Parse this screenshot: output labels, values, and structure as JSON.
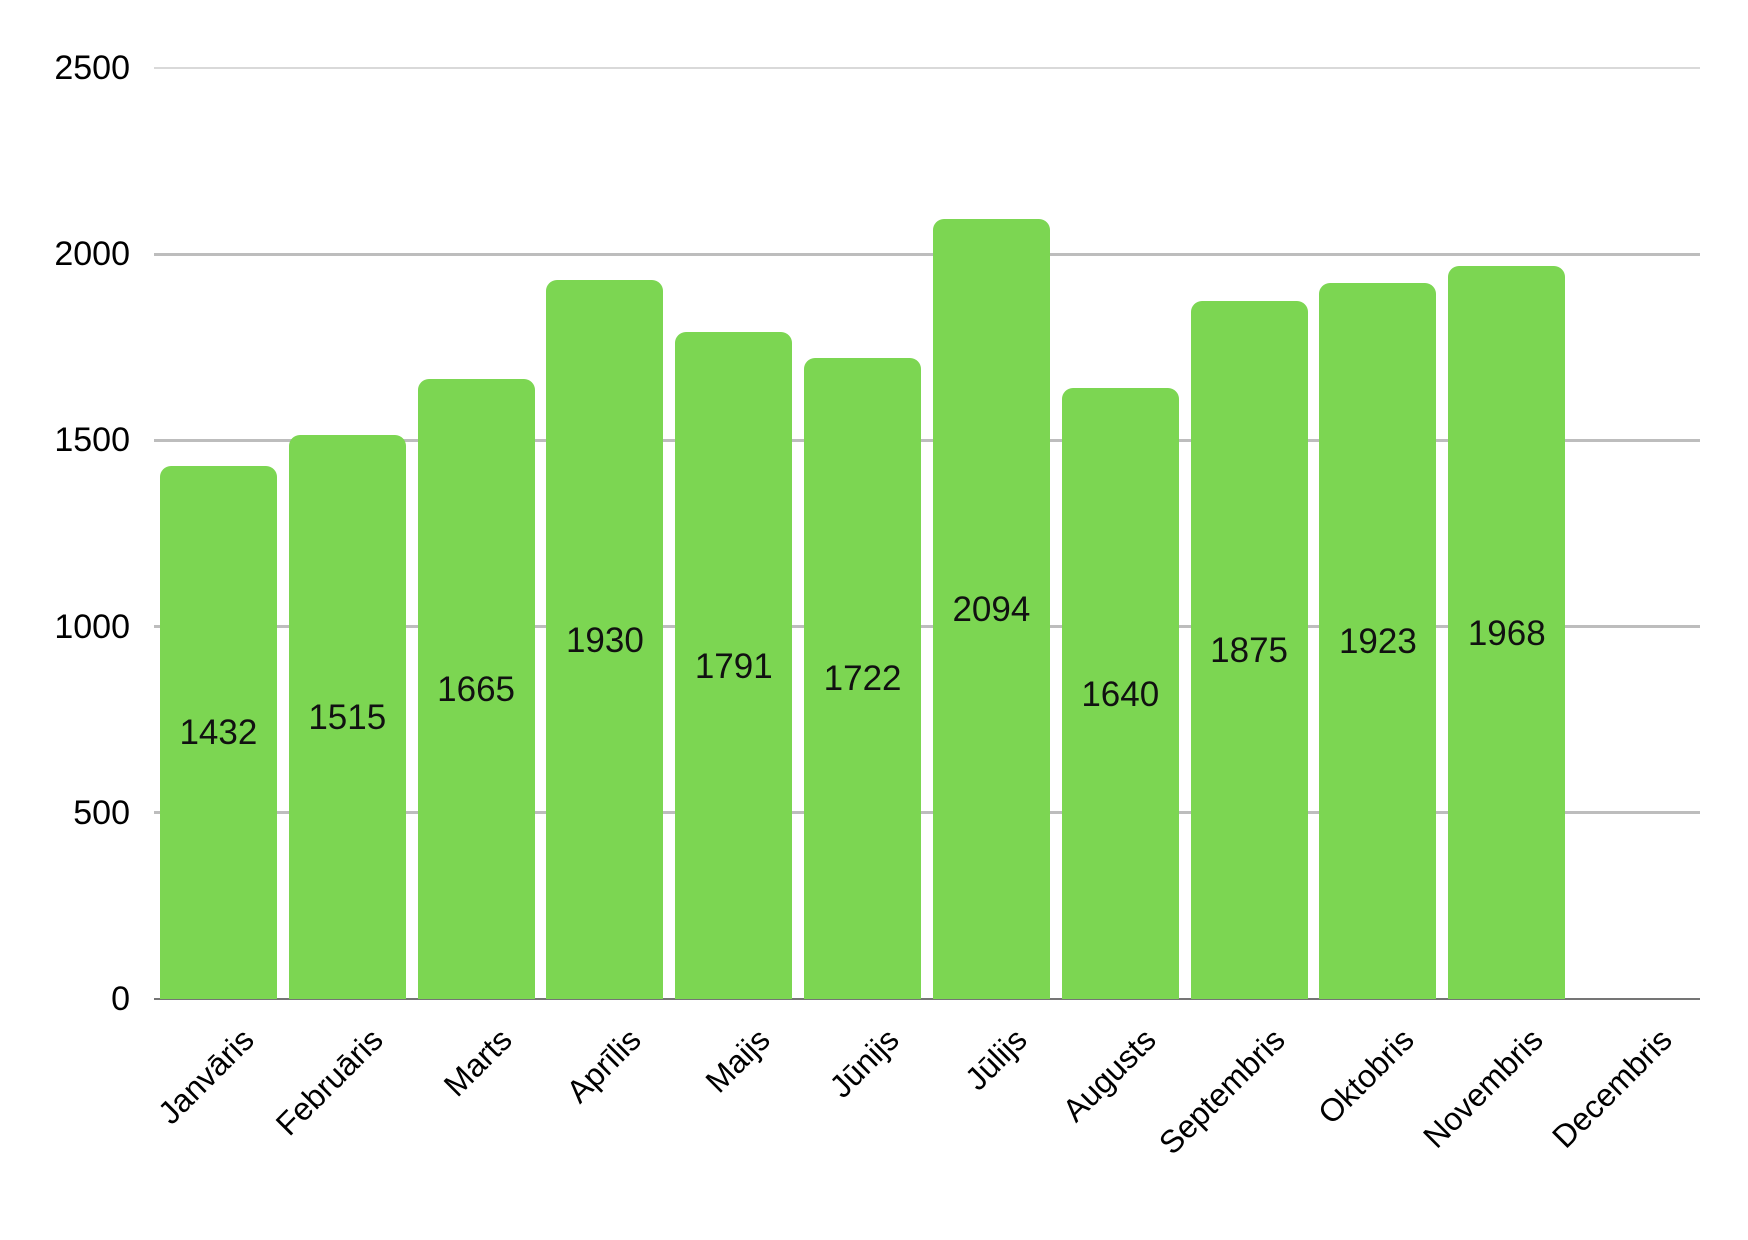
{
  "chart_data": {
    "type": "bar",
    "title": "",
    "xlabel": "",
    "ylabel": "",
    "categories": [
      "Janvāris",
      "Februāris",
      "Marts",
      "Aprīlis",
      "Maijs",
      "Jūnijs",
      "Jūlijs",
      "Augusts",
      "Septembris",
      "Oktobris",
      "Novembris",
      "Decembris"
    ],
    "values": [
      1432,
      1515,
      1665,
      1930,
      1791,
      1722,
      2094,
      1640,
      1875,
      1923,
      1968,
      null
    ],
    "value_labels": [
      "1432",
      "1515",
      "1665",
      "1930",
      "1791",
      "1722",
      "2094",
      "1640",
      "1875",
      "1923",
      "1968",
      ""
    ],
    "ylim": [
      0,
      2500
    ],
    "yticks": [
      "0",
      "500",
      "1000",
      "1500",
      "2000",
      "2500"
    ],
    "grid": true,
    "legend": false,
    "layout_hints": {
      "bar_corner": "rounded-top",
      "value_label_position": "center-of-bar",
      "x_label_rotation_deg": -45
    },
    "colors": {
      "bar": "#7CD652",
      "value_label": "#111111",
      "axis_label": "#000000",
      "gridline": "#BDBDBD",
      "top_gridline": "#D9D9D9",
      "baseline": "#757575",
      "background": "#FFFFFF"
    }
  }
}
